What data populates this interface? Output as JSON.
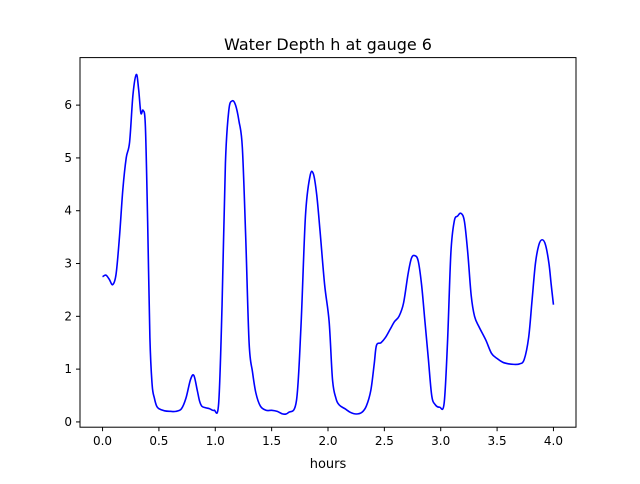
{
  "chart_data": {
    "type": "line",
    "title": "Water Depth h at gauge 6",
    "xlabel": "hours",
    "ylabel": "",
    "xlim": [
      -0.2,
      4.2
    ],
    "ylim": [
      -0.1,
      6.9
    ],
    "xticks": [
      0.0,
      0.5,
      1.0,
      1.5,
      2.0,
      2.5,
      3.0,
      3.5,
      4.0
    ],
    "xtick_labels": [
      "0.0",
      "0.5",
      "1.0",
      "1.5",
      "2.0",
      "2.5",
      "3.0",
      "3.5",
      "4.0"
    ],
    "yticks": [
      0,
      1,
      2,
      3,
      4,
      5,
      6
    ],
    "ytick_labels": [
      "0",
      "1",
      "2",
      "3",
      "4",
      "5",
      "6"
    ],
    "grid": false,
    "line_color": "#0000ff",
    "series": [
      {
        "x": [
          0.0,
          0.03,
          0.06,
          0.09,
          0.12,
          0.15,
          0.18,
          0.21,
          0.24,
          0.27,
          0.3,
          0.32,
          0.34,
          0.36,
          0.38,
          0.4,
          0.42,
          0.44,
          0.46,
          0.48,
          0.5,
          0.55,
          0.6,
          0.65,
          0.7,
          0.74,
          0.78,
          0.81,
          0.84,
          0.86,
          0.88,
          0.91,
          0.95,
          0.99,
          1.03,
          1.06,
          1.09,
          1.12,
          1.15,
          1.18,
          1.21,
          1.24,
          1.27,
          1.3,
          1.33,
          1.36,
          1.4,
          1.45,
          1.5,
          1.55,
          1.6,
          1.65,
          1.72,
          1.76,
          1.8,
          1.84,
          1.87,
          1.9,
          1.93,
          1.97,
          2.01,
          2.04,
          2.07,
          2.1,
          2.15,
          2.2,
          2.25,
          2.3,
          2.34,
          2.38,
          2.41,
          2.43,
          2.47,
          2.51,
          2.55,
          2.59,
          2.63,
          2.67,
          2.71,
          2.74,
          2.77,
          2.8,
          2.83,
          2.86,
          2.89,
          2.92,
          2.95,
          2.99,
          3.03,
          3.06,
          3.09,
          3.12,
          3.15,
          3.18,
          3.21,
          3.24,
          3.27,
          3.3,
          3.34,
          3.4,
          3.45,
          3.5,
          3.55,
          3.6,
          3.65,
          3.7,
          3.74,
          3.78,
          3.81,
          3.84,
          3.87,
          3.9,
          3.93,
          3.96,
          3.98,
          4.0
        ],
        "y": [
          2.75,
          2.78,
          2.7,
          2.6,
          2.8,
          3.5,
          4.4,
          5.0,
          5.3,
          6.2,
          6.58,
          6.3,
          5.85,
          5.9,
          5.6,
          3.8,
          1.6,
          0.7,
          0.45,
          0.3,
          0.25,
          0.21,
          0.2,
          0.2,
          0.25,
          0.45,
          0.8,
          0.88,
          0.6,
          0.4,
          0.3,
          0.27,
          0.25,
          0.22,
          0.35,
          2.2,
          4.9,
          5.9,
          6.08,
          6.0,
          5.7,
          5.2,
          3.5,
          1.5,
          0.95,
          0.55,
          0.3,
          0.22,
          0.22,
          0.2,
          0.15,
          0.18,
          0.4,
          1.8,
          3.9,
          4.65,
          4.7,
          4.3,
          3.6,
          2.6,
          1.9,
          0.8,
          0.45,
          0.32,
          0.25,
          0.18,
          0.15,
          0.18,
          0.3,
          0.6,
          1.1,
          1.45,
          1.5,
          1.6,
          1.75,
          1.9,
          2.0,
          2.25,
          2.8,
          3.1,
          3.15,
          3.05,
          2.6,
          1.9,
          1.2,
          0.5,
          0.33,
          0.28,
          0.35,
          1.5,
          3.2,
          3.8,
          3.9,
          3.95,
          3.8,
          3.2,
          2.4,
          2.0,
          1.8,
          1.55,
          1.3,
          1.2,
          1.13,
          1.1,
          1.09,
          1.1,
          1.18,
          1.6,
          2.3,
          3.0,
          3.35,
          3.45,
          3.35,
          3.0,
          2.6,
          2.22
        ]
      }
    ]
  }
}
